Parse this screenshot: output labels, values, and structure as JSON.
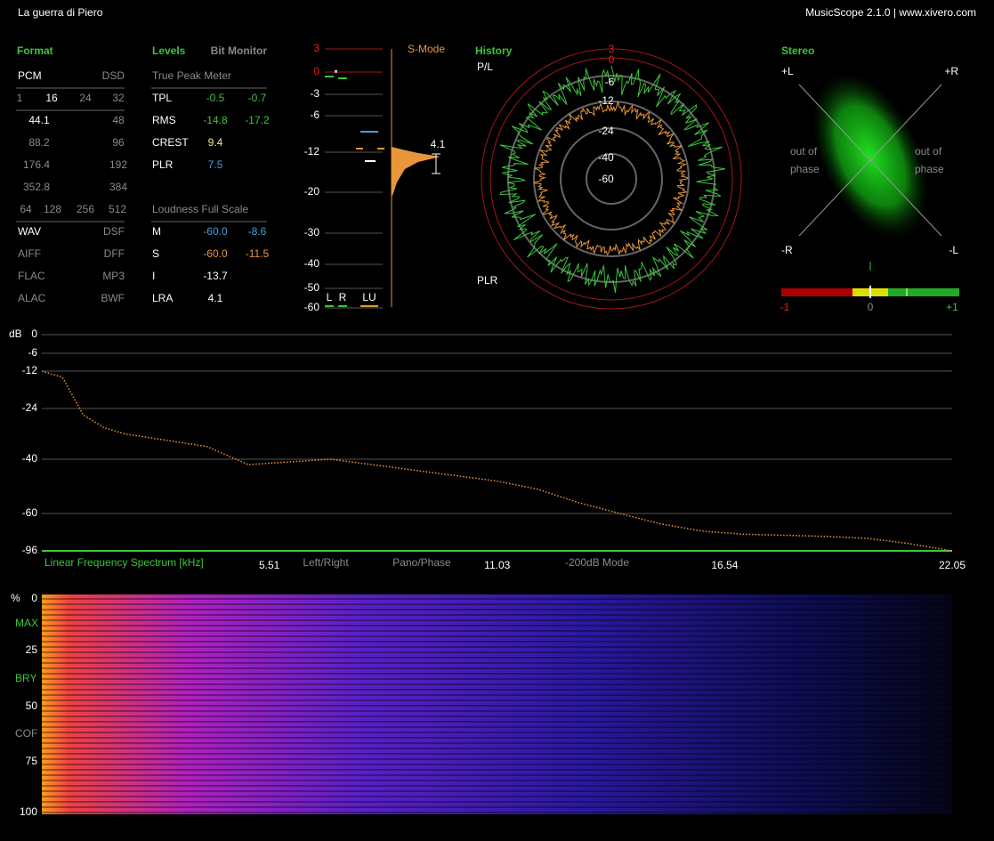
{
  "header": {
    "title": "La guerra di Piero",
    "app": "MusicScope 2.1.0 | www.xivero.com"
  },
  "format": {
    "title": "Format",
    "rows": [
      [
        "PCM",
        "DSD"
      ],
      [
        "1",
        "16",
        "24",
        "32"
      ],
      [
        "44.1",
        "48"
      ],
      [
        "88.2",
        "96"
      ],
      [
        "176.4",
        "192"
      ],
      [
        "352.8",
        "384"
      ],
      [
        "64",
        "128",
        "256",
        "512"
      ],
      [
        "WAV",
        "DSF"
      ],
      [
        "AIFF",
        "DFF"
      ],
      [
        "FLAC",
        "MP3"
      ],
      [
        "ALAC",
        "BWF"
      ]
    ]
  },
  "levels": {
    "title": "Levels",
    "bit_monitor": "Bit Monitor",
    "true_peak_heading": "True Peak Meter",
    "rows": [
      [
        "TPL",
        "-0.5",
        "-0.7"
      ],
      [
        "RMS",
        "-14.8",
        "-17.2"
      ],
      [
        "CREST",
        "9.4"
      ],
      [
        "PLR",
        "7.5"
      ]
    ],
    "loudness_heading": "Loudness Full Scale",
    "loudness_rows": [
      [
        "M",
        "-60.0",
        "-8.6"
      ],
      [
        "S",
        "-60.0",
        "-11.5"
      ],
      [
        "I",
        "-13.7"
      ],
      [
        "LRA",
        "4.1"
      ]
    ]
  },
  "meter": {
    "mode": "S-Mode",
    "scale": [
      "3",
      "0",
      "-3",
      "-6",
      "-12",
      "-20",
      "-30",
      "-40",
      "-50",
      "-60"
    ],
    "lra_value": "4.1",
    "labels": [
      "L",
      "R",
      "LU"
    ]
  },
  "history": {
    "title": "History",
    "top": "P/L",
    "bottom": "PLR",
    "rings": [
      "3",
      "0",
      "-6",
      "-12",
      "-24",
      "-40",
      "-60"
    ]
  },
  "stereo": {
    "title": "Stereo",
    "corners": [
      "+L",
      "+R",
      "-R",
      "-L"
    ],
    "left_note": [
      "out of",
      "phase"
    ],
    "right_note": [
      "out of",
      "phase"
    ],
    "scale": [
      "-1",
      "0",
      "+1"
    ]
  },
  "spectrum": {
    "unit": "dB",
    "title": "Linear Frequency Spectrum [kHz]",
    "buttons": [
      "Left/Right",
      "Pano/Phase",
      "-200dB Mode"
    ],
    "yticks": [
      0,
      -6,
      -12,
      -24,
      -40,
      -60,
      -96
    ],
    "xticks": [
      5.51,
      11.03,
      16.54,
      22.05
    ],
    "xlim": [
      0,
      22.05
    ],
    "x": [
      0,
      0.5,
      1,
      1.5,
      2,
      3,
      4,
      5,
      6,
      7,
      8,
      9,
      10,
      11,
      12,
      13,
      14,
      15,
      16,
      17,
      18,
      19,
      20,
      21,
      22.05
    ],
    "values": [
      -12,
      -14,
      -26,
      -30,
      -32,
      -34,
      -36,
      -42,
      -41,
      -40,
      -42,
      -44,
      -46,
      -48,
      -51,
      -56,
      -60,
      -70,
      -77,
      -80,
      -81,
      -82,
      -84,
      -89,
      -96
    ]
  },
  "spectrogram": {
    "labels": [
      "%",
      "0",
      "MAX",
      "25",
      "BRY",
      "50",
      "COF",
      "75",
      "100"
    ]
  }
}
